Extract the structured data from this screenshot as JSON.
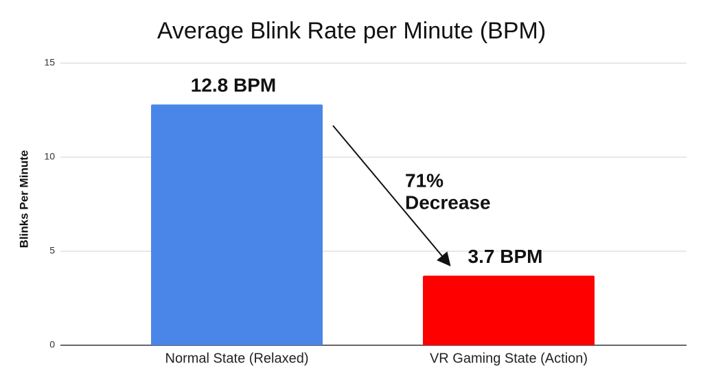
{
  "chart_data": {
    "type": "bar",
    "title": "Average Blink Rate per Minute (BPM)",
    "ylabel": "Blinks Per Minute",
    "categories": [
      "Normal State (Relaxed)",
      "VR Gaming State (Action)"
    ],
    "values": [
      12.8,
      3.7
    ],
    "value_labels": [
      "12.8 BPM",
      "3.7 BPM"
    ],
    "colors": [
      "#4a86e8",
      "#ff0000"
    ],
    "ylim": [
      0,
      15
    ],
    "yticks": [
      0,
      5,
      10,
      15
    ],
    "grid": true,
    "annotation": [
      "71%",
      "Decrease"
    ]
  }
}
